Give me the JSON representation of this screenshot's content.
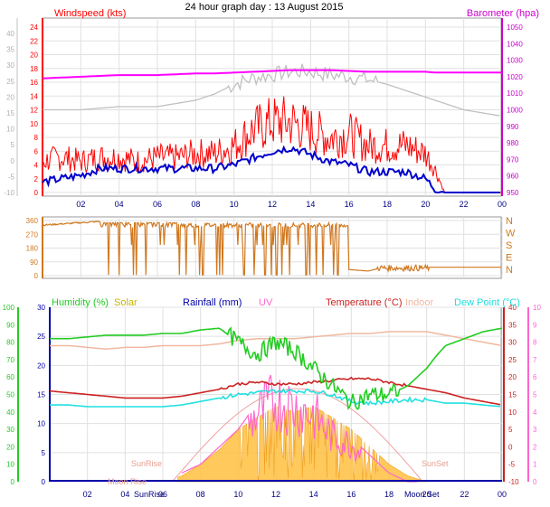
{
  "title": "24 hour graph day : 13 August 2015",
  "colors": {
    "wind": "#ff0000",
    "gust_avg": "#0000cc",
    "barometer": "#ff00ff",
    "baro_axis": "#cc00cc",
    "gust_gray": "#c0c0c0",
    "direction": "#d07820",
    "humidity": "#22cc22",
    "solar": "#ffc040",
    "rain": "#0000aa",
    "uv": "#ff66cc",
    "temperature": "#cc2222",
    "indoor": "#f0b8a0",
    "dew": "#22e0e0",
    "suntext": "#e8a090",
    "grid": "#e0e0e0",
    "frame": "#888888"
  },
  "labels": {
    "windspeed": "Windspeed (kts)",
    "barometer": "Barometer (hpa)",
    "humidity": "Humidity (%)",
    "solar": "Solar",
    "rainfall": "Rainfall (mm)",
    "uv": "UV",
    "temperature": "Temperature (°C)",
    "indoor": "Indoor",
    "dewpoint": "Dew Point (°C)",
    "sunrise": "SunRise",
    "sunset": "SunSet",
    "moonrise": "Moon Rise",
    "moonset": "Moon Set"
  },
  "chart_data": [
    {
      "type": "line",
      "x_ticks": [
        "02",
        "04",
        "06",
        "08",
        "10",
        "12",
        "14",
        "16",
        "18",
        "20",
        "22",
        "00"
      ],
      "wind_ticks": [
        0,
        2,
        4,
        6,
        8,
        10,
        12,
        14,
        16,
        18,
        20,
        22,
        24
      ],
      "baro_ticks": [
        950,
        960,
        970,
        980,
        990,
        1000,
        1010,
        1020,
        1030,
        1040,
        1050
      ],
      "gray_ticks": [
        -10,
        -5,
        0,
        5,
        10,
        15,
        20,
        25,
        30,
        35,
        40
      ],
      "hours": [
        0,
        1,
        2,
        3,
        4,
        5,
        6,
        7,
        8,
        9,
        10,
        11,
        12,
        13,
        14,
        15,
        16,
        17,
        18,
        19,
        20,
        20.5,
        21,
        22,
        23,
        24
      ],
      "series": [
        {
          "name": "Windspeed (kts)",
          "values": [
            4,
            4.5,
            4,
            4.5,
            4.5,
            4,
            4.5,
            4.5,
            5,
            5,
            6,
            8,
            9,
            9,
            8,
            7,
            7.5,
            6,
            6,
            6,
            5,
            3,
            0,
            0,
            0,
            0
          ]
        },
        {
          "name": "",
          "values": [
            1.5,
            2,
            2.5,
            3.5,
            3.5,
            3.5,
            3.5,
            3.5,
            3.5,
            3.5,
            4,
            5,
            6,
            6.5,
            5.5,
            4.5,
            4,
            3,
            3,
            3,
            2,
            0.5,
            0,
            0,
            0,
            0
          ]
        },
        {
          "name": "Barometer (hpa)",
          "values": [
            1019,
            1019.5,
            1020,
            1020.5,
            1021,
            1021,
            1021,
            1021.5,
            1022,
            1022,
            1022.5,
            1023,
            1023.5,
            1024,
            1024,
            1024,
            1023.5,
            1023,
            1023,
            1023,
            1023,
            1022.5,
            1022.5,
            1022.5,
            1022.5,
            1022.5
          ]
        },
        {
          "name": "",
          "values": [
            16,
            16,
            16,
            16.5,
            17,
            17,
            17,
            18,
            19,
            21,
            24,
            26,
            27,
            28,
            28,
            27,
            26.5,
            25.5,
            24,
            22,
            20,
            19,
            18,
            16,
            15,
            14
          ]
        }
      ]
    },
    {
      "type": "line",
      "y_ticks": [
        0,
        90,
        180,
        270,
        360
      ],
      "compass": [
        "N",
        "W",
        "S",
        "E",
        "N"
      ],
      "series": [
        {
          "name": "",
          "values": [
            330,
            335,
            340,
            345,
            350,
            350,
            300,
            180,
            10,
            280,
            350,
            180,
            350,
            350,
            200,
            340,
            40,
            30,
            60,
            40,
            30,
            40,
            55,
            55,
            55,
            55
          ]
        }
      ]
    },
    {
      "type": "line",
      "humidity_ticks": [
        0,
        10,
        20,
        30,
        40,
        50,
        60,
        70,
        80,
        90,
        100
      ],
      "y_ticks": [
        0,
        5,
        10,
        15,
        20,
        25,
        30
      ],
      "temp_ticks": [
        -10,
        -5,
        0,
        5,
        10,
        15,
        20,
        25,
        30,
        35,
        40
      ],
      "uv_ticks": [
        0,
        1,
        2,
        3,
        4,
        5,
        6,
        7,
        8,
        9,
        10
      ],
      "x_ticks": [
        "02",
        "04",
        "06",
        "08",
        "10",
        "12",
        "14",
        "16",
        "18",
        "20",
        "22",
        "00"
      ],
      "hours": [
        0,
        1,
        2,
        3,
        4,
        5,
        6,
        7,
        8,
        9,
        10,
        11,
        12,
        13,
        14,
        15,
        16,
        17,
        18,
        19,
        20,
        20.5,
        21,
        22,
        23,
        24
      ],
      "series": [
        {
          "name": "Humidity (%)",
          "values": [
            82,
            82,
            83,
            84,
            84,
            84,
            85,
            85,
            87,
            88,
            80,
            73,
            80,
            75,
            65,
            55,
            45,
            50,
            50,
            55,
            65,
            72,
            78,
            82,
            86,
            88
          ]
        },
        {
          "name": "Temperature (°C)",
          "values": [
            16,
            15.5,
            15,
            14.5,
            14,
            14,
            14,
            14.5,
            15.5,
            16.5,
            18,
            18.5,
            18,
            18,
            18.5,
            19,
            19.5,
            19.5,
            18.5,
            17.5,
            16.5,
            16,
            15.5,
            14,
            13,
            12
          ]
        },
        {
          "name": "Dew Point (°C)",
          "values": [
            12,
            12,
            11.5,
            11.5,
            11.5,
            11.5,
            11.5,
            12,
            13,
            14,
            15,
            15.5,
            16,
            16,
            16,
            15,
            13,
            12.5,
            13,
            13.5,
            13.5,
            13,
            12.5,
            12.5,
            12,
            11.5
          ]
        },
        {
          "name": "Indoor",
          "values": [
            29,
            29,
            28.5,
            28,
            28.5,
            28.5,
            29,
            29,
            29,
            29.5,
            30.5,
            31,
            31,
            31,
            31.5,
            32,
            32.5,
            32.5,
            33,
            33,
            33,
            32.5,
            32,
            31,
            30,
            29
          ]
        },
        {
          "name": "Solar",
          "values": [
            0,
            0,
            0,
            0,
            0,
            0,
            0,
            1,
            3,
            5.5,
            9,
            11,
            13,
            12,
            13,
            11,
            9,
            6,
            3,
            1,
            0,
            0,
            0,
            0,
            0,
            0
          ]
        },
        {
          "name": "UV",
          "values": [
            0,
            0,
            0,
            0,
            0,
            0,
            0,
            0.5,
            1,
            2,
            3,
            4.5,
            5.5,
            5,
            4.5,
            3,
            2.5,
            1.5,
            0.5,
            0,
            0,
            0,
            0,
            0,
            0,
            0
          ]
        }
      ]
    }
  ]
}
